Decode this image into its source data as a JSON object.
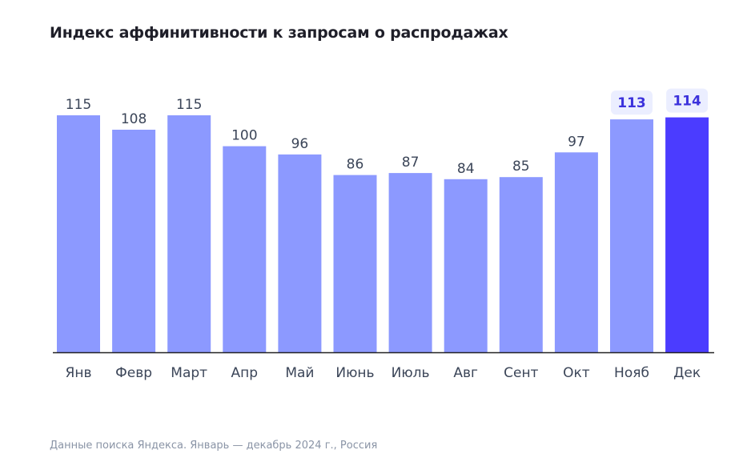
{
  "chart_data": {
    "type": "bar",
    "title": "Индекс аффинитивности к запросам о распродажах",
    "categories": [
      "Янв",
      "Февр",
      "Март",
      "Апр",
      "Май",
      "Июнь",
      "Июль",
      "Авг",
      "Сент",
      "Окт",
      "Нояб",
      "Дек"
    ],
    "values": [
      115,
      108,
      115,
      100,
      96,
      86,
      87,
      84,
      85,
      97,
      113,
      114
    ],
    "value_labels": [
      "115",
      "108",
      "115",
      "100",
      "96",
      "86",
      "87",
      "84",
      "85",
      "97",
      "113",
      "114"
    ],
    "highlight": [
      false,
      false,
      false,
      false,
      false,
      false,
      false,
      false,
      false,
      false,
      true,
      true
    ],
    "emphasis_index": 11,
    "xlabel": "",
    "ylabel": "",
    "ylim": [
      0,
      115
    ],
    "grid": false,
    "colors": {
      "bar": "#8c99ff",
      "bar_emphasis": "#4b3cff",
      "highlight_label_bg": "#ebeeff",
      "highlight_label_text": "#3c32dc",
      "label_text": "#3b4558",
      "axis": "#222222"
    }
  },
  "footer": {
    "source": "Данные поиска Яндекса. Январь — декабрь 2024 г., Россия"
  }
}
